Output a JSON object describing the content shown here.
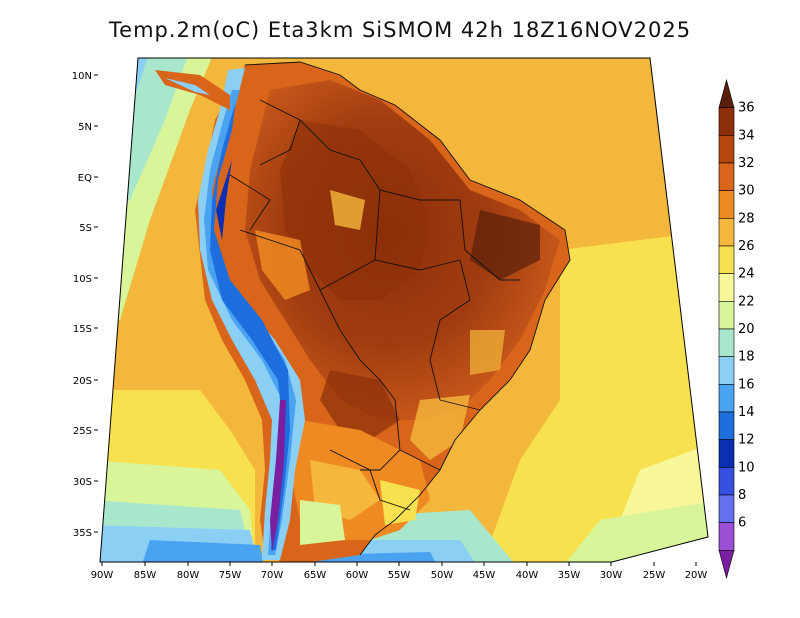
{
  "title": "Temp.2m(oC) Eta3km SiSMOM 42h 18Z16NOV2025",
  "lat_labels": [
    "10N",
    "5N",
    "EQ",
    "5S",
    "10S",
    "15S",
    "20S",
    "25S",
    "30S",
    "35S"
  ],
  "lon_labels": [
    "90W",
    "85W",
    "80W",
    "75W",
    "70W",
    "65W",
    "60W",
    "55W",
    "50W",
    "45W",
    "40W",
    "35W",
    "30W",
    "25W",
    "20W"
  ],
  "colorbar": {
    "labels": [
      "36",
      "34",
      "32",
      "30",
      "28",
      "26",
      "24",
      "22",
      "20",
      "18",
      "16",
      "14",
      "12",
      "10",
      "8",
      "6"
    ],
    "colors": [
      "#5a1f0a",
      "#8c2f0a",
      "#b5470f",
      "#d8651a",
      "#ef8a22",
      "#f5b83c",
      "#f8e14e",
      "#f8f89a",
      "#d8f59a",
      "#a8e7cc",
      "#8ccff5",
      "#4aa3f0",
      "#1e6ee0",
      "#0a2fb0",
      "#3550e0",
      "#6670ee",
      "#9a4fd6",
      "#7a1fa0"
    ]
  }
}
